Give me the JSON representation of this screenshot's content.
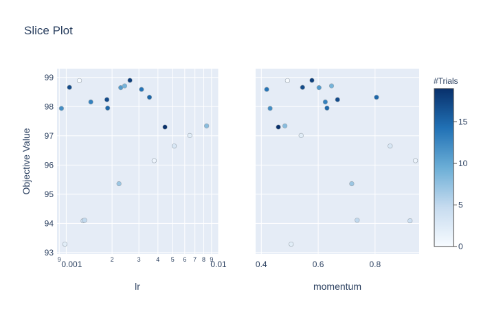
{
  "chart_data": {
    "type": "scatter",
    "title": "Slice Plot",
    "ylabel": "Objective Value",
    "ylim": [
      92.95,
      99.3
    ],
    "y_ticks": [
      93,
      94,
      95,
      96,
      97,
      98,
      99
    ],
    "colorbar": {
      "title": "#Trials",
      "range": [
        0,
        19
      ],
      "ticks": [
        0,
        5,
        10,
        15
      ],
      "colors": [
        "#f7fbff",
        "#c6dbef",
        "#6baed6",
        "#2171b5",
        "#08306b"
      ]
    },
    "subplots": [
      {
        "xlabel": "lr",
        "xscale": "log",
        "xlim": [
          0.00087,
          0.01
        ],
        "x_ticks": [
          {
            "v": 0.0009,
            "label": "9",
            "small": true
          },
          {
            "v": 0.001,
            "label": "0.001",
            "small": false
          },
          {
            "v": 0.002,
            "label": "2",
            "small": true
          },
          {
            "v": 0.003,
            "label": "3",
            "small": true
          },
          {
            "v": 0.004,
            "label": "4",
            "small": true
          },
          {
            "v": 0.005,
            "label": "5",
            "small": true
          },
          {
            "v": 0.006,
            "label": "6",
            "small": true
          },
          {
            "v": 0.007,
            "label": "7",
            "small": true
          },
          {
            "v": 0.008,
            "label": "8",
            "small": true
          },
          {
            "v": 0.009,
            "label": "9",
            "small": true
          },
          {
            "v": 0.01,
            "label": "0.01",
            "small": false
          }
        ],
        "points": [
          {
            "x": 0.00093,
            "y": 97.94,
            "trial": 12
          },
          {
            "x": 0.00098,
            "y": 93.29,
            "trial": 2
          },
          {
            "x": 0.00105,
            "y": 98.66,
            "trial": 17
          },
          {
            "x": 0.00122,
            "y": 98.89,
            "trial": 0
          },
          {
            "x": 0.00129,
            "y": 94.09,
            "trial": 4
          },
          {
            "x": 0.00132,
            "y": 94.11,
            "trial": 5
          },
          {
            "x": 0.00145,
            "y": 98.16,
            "trial": 13
          },
          {
            "x": 0.00185,
            "y": 98.24,
            "trial": 17
          },
          {
            "x": 0.00187,
            "y": 97.95,
            "trial": 15
          },
          {
            "x": 0.00222,
            "y": 95.36,
            "trial": 7
          },
          {
            "x": 0.00228,
            "y": 98.65,
            "trial": 11
          },
          {
            "x": 0.00242,
            "y": 98.71,
            "trial": 9
          },
          {
            "x": 0.00262,
            "y": 98.9,
            "trial": 18
          },
          {
            "x": 0.00312,
            "y": 98.59,
            "trial": 14
          },
          {
            "x": 0.00352,
            "y": 98.32,
            "trial": 15
          },
          {
            "x": 0.00378,
            "y": 96.15,
            "trial": 1
          },
          {
            "x": 0.00445,
            "y": 97.3,
            "trial": 19
          },
          {
            "x": 0.00512,
            "y": 96.65,
            "trial": 3
          },
          {
            "x": 0.00648,
            "y": 97.01,
            "trial": 2
          },
          {
            "x": 0.00835,
            "y": 97.34,
            "trial": 8
          }
        ]
      },
      {
        "xlabel": "momentum",
        "xscale": "linear",
        "xlim": [
          0.38,
          0.955
        ],
        "x_ticks": [
          {
            "v": 0.4,
            "label": "0.4"
          },
          {
            "v": 0.6,
            "label": "0.6"
          },
          {
            "v": 0.8,
            "label": "0.8"
          }
        ],
        "points": [
          {
            "x": 0.419,
            "y": 98.59,
            "trial": 14
          },
          {
            "x": 0.431,
            "y": 97.94,
            "trial": 12
          },
          {
            "x": 0.46,
            "y": 97.3,
            "trial": 19
          },
          {
            "x": 0.483,
            "y": 97.34,
            "trial": 8
          },
          {
            "x": 0.492,
            "y": 98.89,
            "trial": 0
          },
          {
            "x": 0.505,
            "y": 93.29,
            "trial": 2
          },
          {
            "x": 0.54,
            "y": 97.01,
            "trial": 2
          },
          {
            "x": 0.545,
            "y": 98.66,
            "trial": 17
          },
          {
            "x": 0.578,
            "y": 98.9,
            "trial": 18
          },
          {
            "x": 0.603,
            "y": 98.65,
            "trial": 11
          },
          {
            "x": 0.625,
            "y": 98.16,
            "trial": 13
          },
          {
            "x": 0.631,
            "y": 97.95,
            "trial": 15
          },
          {
            "x": 0.647,
            "y": 98.71,
            "trial": 9
          },
          {
            "x": 0.668,
            "y": 98.24,
            "trial": 17
          },
          {
            "x": 0.718,
            "y": 95.36,
            "trial": 7
          },
          {
            "x": 0.737,
            "y": 94.11,
            "trial": 5
          },
          {
            "x": 0.805,
            "y": 98.32,
            "trial": 15
          },
          {
            "x": 0.853,
            "y": 96.65,
            "trial": 3
          },
          {
            "x": 0.923,
            "y": 94.09,
            "trial": 4
          },
          {
            "x": 0.942,
            "y": 96.15,
            "trial": 1
          }
        ]
      }
    ]
  }
}
